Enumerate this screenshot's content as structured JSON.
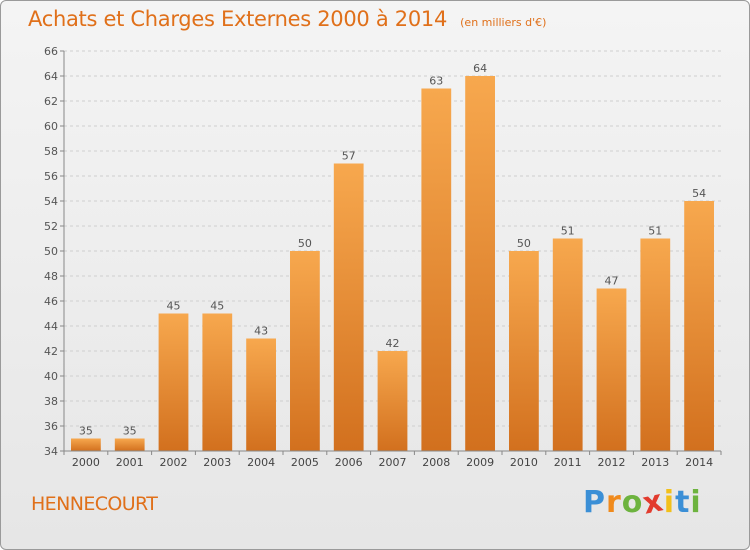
{
  "header": {
    "title": "Achats et Charges Externes 2000 à 2014",
    "unit": "(en milliers d'€)"
  },
  "footer": {
    "commune": "HENNECOURT",
    "logo": {
      "letters": [
        "P",
        "r",
        "o",
        "x",
        "i",
        "t",
        "i"
      ],
      "colors": [
        "#3b8fd6",
        "#f08a1c",
        "#6db33f",
        "#e23b2e",
        "#f2c01a",
        "#3b8fd6",
        "#6db33f"
      ]
    }
  },
  "colors": {
    "bar_light": "#f7a84e",
    "bar_dark": "#d2701e",
    "grid": "#cfcfcf",
    "axis": "#888888"
  },
  "chart_data": {
    "type": "bar",
    "categories": [
      "2000",
      "2001",
      "2002",
      "2003",
      "2004",
      "2005",
      "2006",
      "2007",
      "2008",
      "2009",
      "2010",
      "2011",
      "2012",
      "2013",
      "2014"
    ],
    "values": [
      35,
      35,
      45,
      45,
      43,
      50,
      57,
      42,
      63,
      64,
      50,
      51,
      47,
      51,
      54
    ],
    "ylim": [
      34,
      66
    ],
    "yticks": [
      34,
      36,
      38,
      40,
      42,
      44,
      46,
      48,
      50,
      52,
      54,
      56,
      58,
      60,
      62,
      64,
      66
    ],
    "grid": true,
    "data_labels": true
  }
}
